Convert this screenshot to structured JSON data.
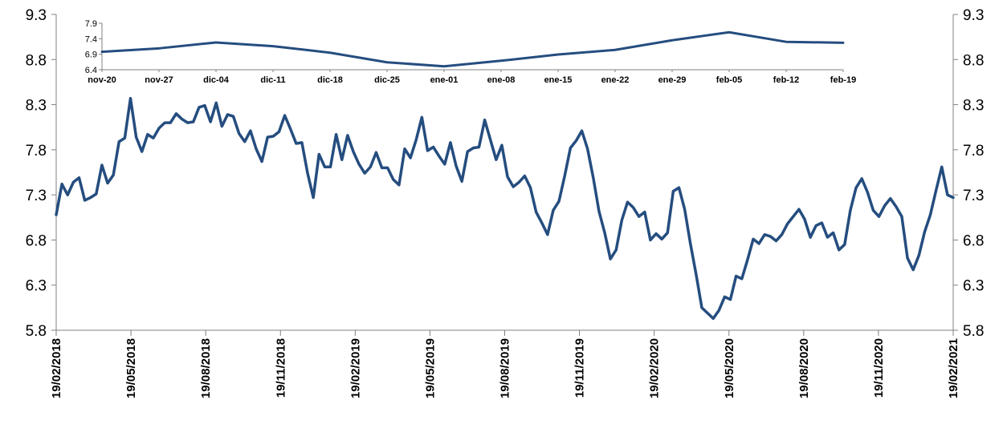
{
  "chart_data": [
    {
      "type": "line",
      "title": "",
      "xlabel": "",
      "ylabel": "",
      "ylim": [
        5.8,
        9.3
      ],
      "y_ticks": [
        5.8,
        6.3,
        6.8,
        7.3,
        7.8,
        8.3,
        8.8,
        9.3
      ],
      "y2_ticks": [
        5.8,
        6.3,
        6.8,
        7.3,
        7.8,
        8.3,
        8.8,
        9.3
      ],
      "x_tick_labels": [
        "19/02/2018",
        "19/05/2018",
        "19/08/2018",
        "19/11/2018",
        "19/02/2019",
        "19/05/2019",
        "19/08/2019",
        "19/11/2019",
        "19/02/2020",
        "19/05/2020",
        "19/08/2020",
        "19/11/2020",
        "19/02/2021"
      ],
      "x_start": "2018-02-19",
      "x_end": "2021-02-19",
      "grid": false,
      "legend": "none",
      "line_color": "#254d7f",
      "series": [
        {
          "values": [
            7.08,
            7.42,
            7.3,
            7.44,
            7.49,
            7.24,
            7.27,
            7.31,
            7.63,
            7.43,
            7.52,
            7.89,
            7.93,
            8.37,
            7.94,
            7.78,
            7.97,
            7.93,
            8.04,
            8.1,
            8.1,
            8.2,
            8.14,
            8.1,
            8.11,
            8.27,
            8.29,
            8.11,
            8.32,
            8.06,
            8.19,
            8.17,
            7.98,
            7.89,
            8.01,
            7.81,
            7.67,
            7.94,
            7.95,
            8.0,
            8.18,
            8.03,
            7.87,
            7.88,
            7.54,
            7.27,
            7.75,
            7.61,
            7.61,
            7.97,
            7.69,
            7.96,
            7.78,
            7.64,
            7.54,
            7.61,
            7.77,
            7.6,
            7.6,
            7.47,
            7.41,
            7.81,
            7.71,
            7.91,
            8.16,
            7.79,
            7.83,
            7.73,
            7.64,
            7.88,
            7.62,
            7.45,
            7.78,
            7.82,
            7.83,
            8.13,
            7.91,
            7.69,
            7.85,
            7.5,
            7.39,
            7.44,
            7.51,
            7.38,
            7.11,
            6.99,
            6.86,
            7.13,
            7.23,
            7.51,
            7.82,
            7.9,
            8.01,
            7.81,
            7.49,
            7.12,
            6.88,
            6.59,
            6.69,
            7.02,
            7.22,
            7.16,
            7.06,
            7.11,
            6.8,
            6.87,
            6.81,
            6.88,
            7.34,
            7.38,
            7.14,
            6.76,
            6.42,
            6.05,
            5.99,
            5.93,
            6.02,
            6.17,
            6.14,
            6.4,
            6.37,
            6.58,
            6.81,
            6.76,
            6.86,
            6.84,
            6.79,
            6.86,
            6.98,
            7.06,
            7.14,
            7.03,
            6.83,
            6.96,
            6.99,
            6.83,
            6.88,
            6.69,
            6.75,
            7.13,
            7.38,
            7.48,
            7.33,
            7.13,
            7.06,
            7.18,
            7.26,
            7.17,
            7.06,
            6.6,
            6.47,
            6.63,
            6.89,
            7.08,
            7.35,
            7.61,
            7.3,
            7.27
          ]
        }
      ]
    },
    {
      "type": "line",
      "title": "",
      "xlabel": "",
      "ylabel": "",
      "ylim": [
        6.4,
        7.9
      ],
      "y_ticks": [
        6.4,
        6.9,
        7.4,
        7.9
      ],
      "categories": [
        "nov-20",
        "nov-27",
        "dic-04",
        "dic-11",
        "dic-18",
        "dic-25",
        "ene-01",
        "ene-08",
        "ene-15",
        "ene-22",
        "ene-29",
        "feb-05",
        "feb-12",
        "feb-19"
      ],
      "grid": false,
      "legend": "none",
      "line_color": "#254d7f",
      "series": [
        {
          "values": [
            6.98,
            7.09,
            7.28,
            7.16,
            6.95,
            6.64,
            6.51,
            6.69,
            6.89,
            7.04,
            7.35,
            7.61,
            7.3,
            7.27
          ]
        }
      ]
    }
  ]
}
